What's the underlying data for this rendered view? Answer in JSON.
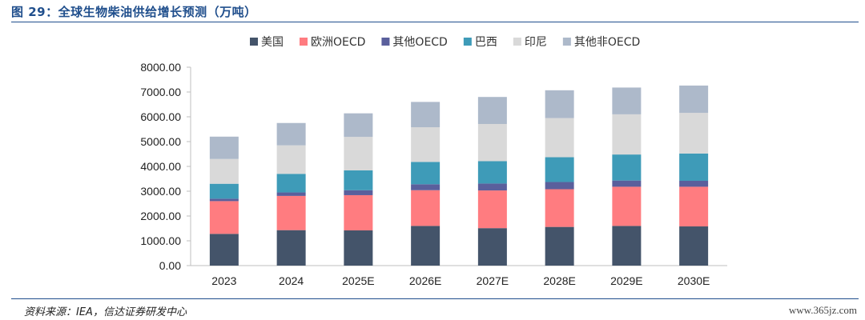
{
  "title": "图 29：全球生物柴油供给增长预测（万吨）",
  "source": "资料来源：IEA，信达证券研发中心",
  "watermark": "www.365jz.com",
  "colors": {
    "美国": "#44546a",
    "欧洲OECD": "#ff7c80",
    "其他OECD": "#5a5f9c",
    "巴西": "#3e9bb8",
    "印尼": "#d9d9d9",
    "其他非OECD": "#adb9ca"
  },
  "chart_data": {
    "type": "bar",
    "stacked": true,
    "categories": [
      "2023",
      "2024",
      "2025E",
      "2026E",
      "2027E",
      "2028E",
      "2029E",
      "2030E"
    ],
    "ylim": [
      0,
      8000
    ],
    "yticks": [
      "0.00",
      "1000.00",
      "2000.00",
      "3000.00",
      "4000.00",
      "5000.00",
      "6000.00",
      "7000.00",
      "8000.00"
    ],
    "legend_position": "top",
    "grid": false,
    "series": [
      {
        "name": "美国",
        "values": [
          1280,
          1430,
          1420,
          1600,
          1510,
          1560,
          1600,
          1580
        ]
      },
      {
        "name": "欧洲OECD",
        "values": [
          1320,
          1380,
          1420,
          1440,
          1520,
          1520,
          1580,
          1600
        ]
      },
      {
        "name": "其他OECD",
        "values": [
          100,
          140,
          200,
          240,
          280,
          290,
          250,
          240
        ]
      },
      {
        "name": "巴西",
        "values": [
          600,
          750,
          800,
          900,
          900,
          1000,
          1050,
          1100
        ]
      },
      {
        "name": "印尼",
        "values": [
          1000,
          1150,
          1350,
          1400,
          1500,
          1580,
          1620,
          1640
        ]
      },
      {
        "name": "其他非OECD",
        "values": [
          900,
          900,
          950,
          1020,
          1090,
          1120,
          1080,
          1100
        ]
      }
    ]
  }
}
